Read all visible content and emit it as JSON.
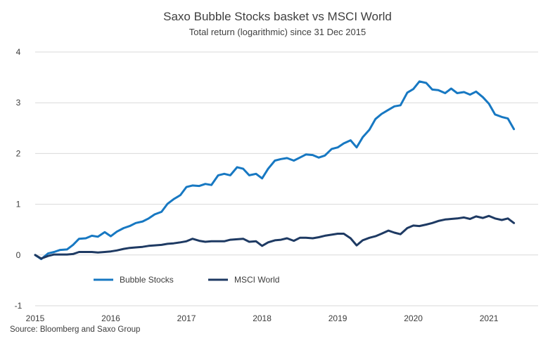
{
  "chart_data": {
    "type": "line",
    "title": "Saxo Bubble Stocks basket vs MSCI World",
    "subtitle": "Total return (logarithmic) since 31 Dec 2015",
    "source": "Source: Bloomberg and Saxo Group",
    "xlabel": "",
    "ylabel": "",
    "ylim": [
      -1,
      4
    ],
    "yticks": [
      "-1",
      "0",
      "1",
      "2",
      "3",
      "4"
    ],
    "xlim": [
      2015,
      2021.65
    ],
    "xticks": [
      "2015",
      "2016",
      "2017",
      "2018",
      "2019",
      "2020",
      "2021"
    ],
    "grid": true,
    "legend_position": "bottom-left",
    "series": [
      {
        "name": "Bubble Stocks",
        "color": "#1778c2",
        "points": [
          [
            2015.0,
            0.0
          ],
          [
            2015.08,
            -0.08
          ],
          [
            2015.17,
            0.03
          ],
          [
            2015.25,
            0.06
          ],
          [
            2015.33,
            0.1
          ],
          [
            2015.42,
            0.11
          ],
          [
            2015.5,
            0.2
          ],
          [
            2015.58,
            0.32
          ],
          [
            2015.67,
            0.33
          ],
          [
            2015.75,
            0.38
          ],
          [
            2015.83,
            0.36
          ],
          [
            2015.92,
            0.45
          ],
          [
            2016.0,
            0.37
          ],
          [
            2016.08,
            0.46
          ],
          [
            2016.17,
            0.53
          ],
          [
            2016.25,
            0.57
          ],
          [
            2016.33,
            0.63
          ],
          [
            2016.42,
            0.66
          ],
          [
            2016.5,
            0.72
          ],
          [
            2016.58,
            0.8
          ],
          [
            2016.67,
            0.85
          ],
          [
            2016.75,
            1.01
          ],
          [
            2016.83,
            1.1
          ],
          [
            2016.92,
            1.18
          ],
          [
            2017.0,
            1.34
          ],
          [
            2017.08,
            1.37
          ],
          [
            2017.17,
            1.36
          ],
          [
            2017.25,
            1.4
          ],
          [
            2017.33,
            1.38
          ],
          [
            2017.42,
            1.57
          ],
          [
            2017.5,
            1.6
          ],
          [
            2017.58,
            1.57
          ],
          [
            2017.67,
            1.73
          ],
          [
            2017.75,
            1.7
          ],
          [
            2017.83,
            1.57
          ],
          [
            2017.92,
            1.6
          ],
          [
            2018.0,
            1.51
          ],
          [
            2018.08,
            1.7
          ],
          [
            2018.17,
            1.86
          ],
          [
            2018.25,
            1.89
          ],
          [
            2018.33,
            1.91
          ],
          [
            2018.42,
            1.86
          ],
          [
            2018.5,
            1.92
          ],
          [
            2018.58,
            1.98
          ],
          [
            2018.67,
            1.97
          ],
          [
            2018.75,
            1.92
          ],
          [
            2018.83,
            1.96
          ],
          [
            2018.92,
            2.09
          ],
          [
            2019.0,
            2.12
          ],
          [
            2019.08,
            2.2
          ],
          [
            2019.17,
            2.26
          ],
          [
            2019.25,
            2.12
          ],
          [
            2019.33,
            2.32
          ],
          [
            2019.42,
            2.47
          ],
          [
            2019.5,
            2.68
          ],
          [
            2019.58,
            2.78
          ],
          [
            2019.67,
            2.86
          ],
          [
            2019.75,
            2.93
          ],
          [
            2019.83,
            2.95
          ],
          [
            2019.92,
            3.2
          ],
          [
            2020.0,
            3.27
          ],
          [
            2020.08,
            3.42
          ],
          [
            2020.17,
            3.39
          ],
          [
            2020.25,
            3.26
          ],
          [
            2020.33,
            3.25
          ],
          [
            2020.42,
            3.19
          ],
          [
            2020.5,
            3.28
          ],
          [
            2020.58,
            3.19
          ],
          [
            2020.67,
            3.21
          ],
          [
            2020.75,
            3.16
          ],
          [
            2020.83,
            3.22
          ],
          [
            2020.92,
            3.11
          ],
          [
            2021.0,
            2.98
          ],
          [
            2021.08,
            2.77
          ],
          [
            2021.17,
            2.72
          ],
          [
            2021.25,
            2.69
          ],
          [
            2021.33,
            2.48
          ]
        ]
      },
      {
        "name": "MSCI World",
        "color": "#1e3a63",
        "points": [
          [
            2015.0,
            0.0
          ],
          [
            2015.08,
            -0.07
          ],
          [
            2015.17,
            -0.02
          ],
          [
            2015.25,
            0.01
          ],
          [
            2015.33,
            0.01
          ],
          [
            2015.42,
            0.01
          ],
          [
            2015.5,
            0.02
          ],
          [
            2015.58,
            0.06
          ],
          [
            2015.67,
            0.06
          ],
          [
            2015.75,
            0.06
          ],
          [
            2015.83,
            0.05
          ],
          [
            2015.92,
            0.06
          ],
          [
            2016.0,
            0.07
          ],
          [
            2016.08,
            0.09
          ],
          [
            2016.17,
            0.12
          ],
          [
            2016.25,
            0.14
          ],
          [
            2016.33,
            0.15
          ],
          [
            2016.42,
            0.16
          ],
          [
            2016.5,
            0.18
          ],
          [
            2016.58,
            0.19
          ],
          [
            2016.67,
            0.2
          ],
          [
            2016.75,
            0.22
          ],
          [
            2016.83,
            0.23
          ],
          [
            2016.92,
            0.25
          ],
          [
            2017.0,
            0.27
          ],
          [
            2017.08,
            0.32
          ],
          [
            2017.17,
            0.28
          ],
          [
            2017.25,
            0.26
          ],
          [
            2017.33,
            0.27
          ],
          [
            2017.42,
            0.27
          ],
          [
            2017.5,
            0.27
          ],
          [
            2017.58,
            0.3
          ],
          [
            2017.67,
            0.31
          ],
          [
            2017.75,
            0.32
          ],
          [
            2017.83,
            0.26
          ],
          [
            2017.92,
            0.27
          ],
          [
            2018.0,
            0.18
          ],
          [
            2018.08,
            0.25
          ],
          [
            2018.17,
            0.29
          ],
          [
            2018.25,
            0.3
          ],
          [
            2018.33,
            0.33
          ],
          [
            2018.42,
            0.28
          ],
          [
            2018.5,
            0.34
          ],
          [
            2018.58,
            0.34
          ],
          [
            2018.67,
            0.33
          ],
          [
            2018.75,
            0.35
          ],
          [
            2018.83,
            0.38
          ],
          [
            2018.92,
            0.4
          ],
          [
            2019.0,
            0.42
          ],
          [
            2019.08,
            0.42
          ],
          [
            2019.17,
            0.33
          ],
          [
            2019.25,
            0.19
          ],
          [
            2019.33,
            0.29
          ],
          [
            2019.42,
            0.34
          ],
          [
            2019.5,
            0.37
          ],
          [
            2019.58,
            0.42
          ],
          [
            2019.67,
            0.48
          ],
          [
            2019.75,
            0.44
          ],
          [
            2019.83,
            0.41
          ],
          [
            2019.92,
            0.53
          ],
          [
            2020.0,
            0.58
          ],
          [
            2020.08,
            0.57
          ],
          [
            2020.17,
            0.6
          ],
          [
            2020.25,
            0.63
          ],
          [
            2020.33,
            0.67
          ],
          [
            2020.42,
            0.7
          ],
          [
            2020.5,
            0.71
          ],
          [
            2020.58,
            0.72
          ],
          [
            2020.67,
            0.74
          ],
          [
            2020.75,
            0.71
          ],
          [
            2020.83,
            0.76
          ],
          [
            2020.92,
            0.73
          ],
          [
            2021.0,
            0.77
          ],
          [
            2021.08,
            0.72
          ],
          [
            2021.17,
            0.69
          ],
          [
            2021.25,
            0.72
          ],
          [
            2021.33,
            0.63
          ]
        ]
      }
    ]
  }
}
